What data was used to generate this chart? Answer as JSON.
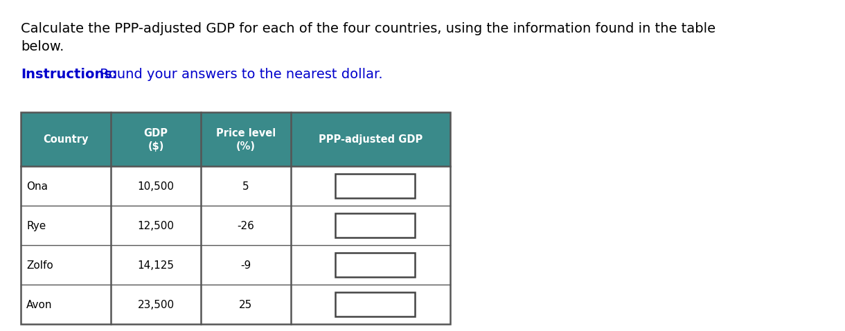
{
  "title_line1": "Calculate the PPP-adjusted GDP for each of the four countries, using the information found in the table",
  "title_line2": "below.",
  "instructions_bold": "Instructions:",
  "instructions_rest": " Round your answers to the nearest dollar.",
  "header_bg_color": "#3a8a8a",
  "header_text_color": "#ffffff",
  "header_font": "Courier New",
  "col_header_lines": [
    [
      "Country"
    ],
    [
      "GDP",
      "($)"
    ],
    [
      "Price level",
      "(%)"
    ],
    [
      "PPP-adjusted GDP"
    ]
  ],
  "rows": [
    [
      "Ona",
      "10,500",
      "5",
      ""
    ],
    [
      "Rye",
      "12,500",
      "-26",
      ""
    ],
    [
      "Zolfo",
      "14,125",
      "-9",
      ""
    ],
    [
      "Avon",
      "23,500",
      "25",
      ""
    ]
  ],
  "border_color": "#555555",
  "answer_box_color": "#ffffff",
  "answer_box_border": "#444444",
  "title_fontsize": 14.0,
  "instructions_fontsize": 14.0,
  "header_fontsize": 10.5,
  "cell_fontsize": 11.0,
  "title_color": "#000000",
  "instructions_bold_color": "#0000cc",
  "instructions_rest_color": "#0000cc",
  "cell_font": "Courier New"
}
